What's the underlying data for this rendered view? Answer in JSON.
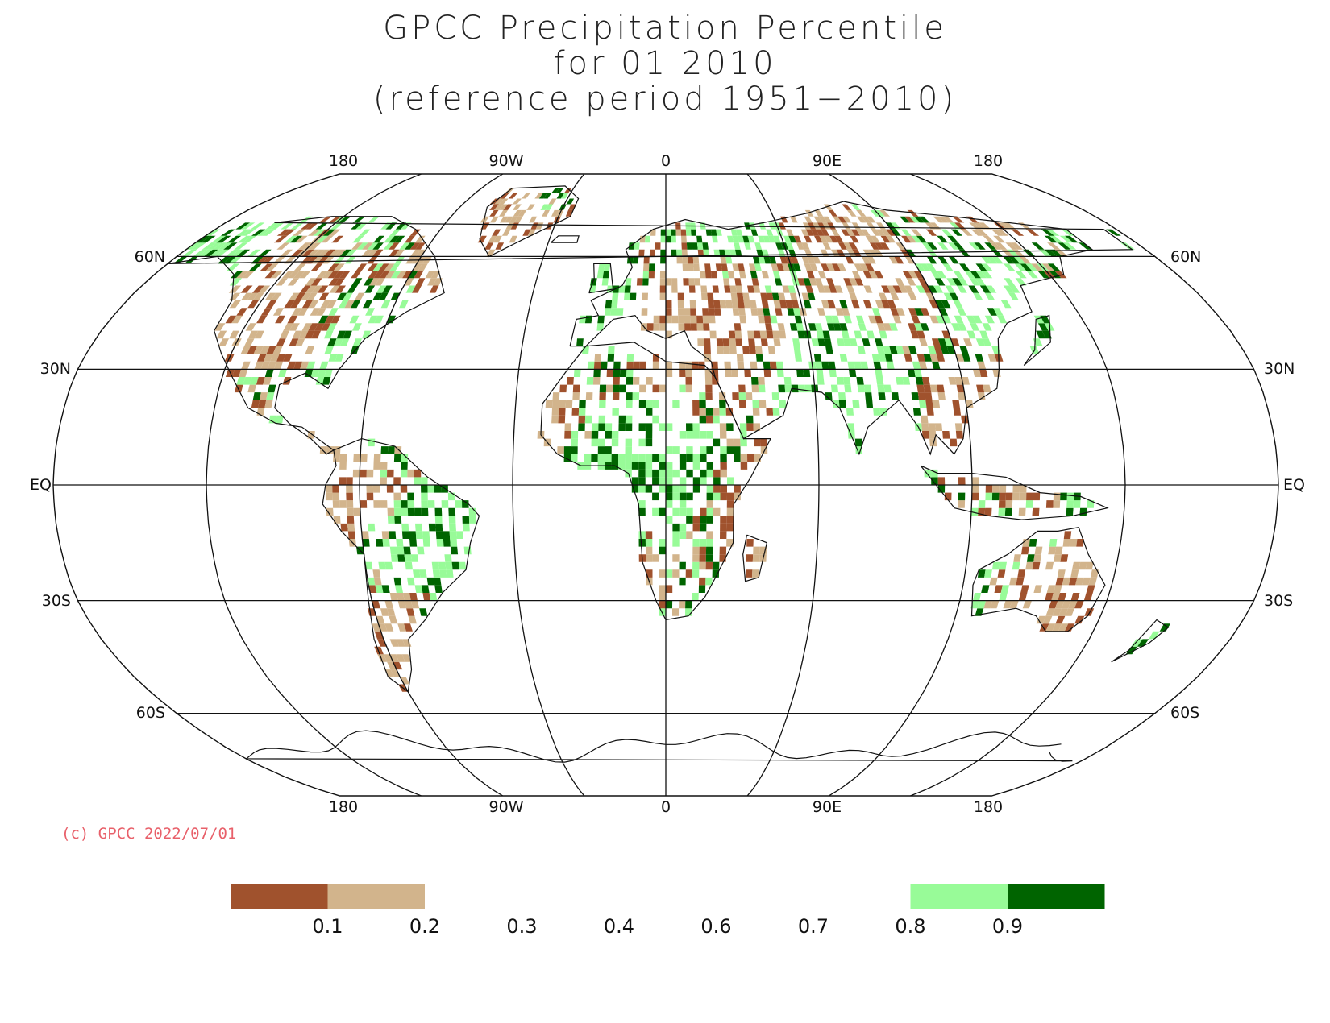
{
  "title": {
    "line1": "GPCC Precipitation Percentile",
    "line2": "for 01 2010",
    "line3": "(reference period 1951−2010)"
  },
  "grid": {
    "lon_labels": [
      "180",
      "90W",
      "0",
      "90E",
      "180"
    ],
    "lat_labels_left": [
      "60N",
      "30N",
      "EQ",
      "30S",
      "60S"
    ],
    "lat_labels_right": [
      "60N",
      "30N",
      "EQ",
      "30S",
      "60S"
    ]
  },
  "copyright": "(c) GPCC 2022/07/01",
  "legend": {
    "tick_labels": [
      "0.1",
      "0.2",
      "0.3",
      "0.4",
      "0.6",
      "0.7",
      "0.8",
      "0.9"
    ],
    "colors": [
      "#a0522d",
      "#d2b48c",
      null,
      null,
      null,
      null,
      null,
      "#98fb98",
      "#006400"
    ]
  },
  "colors": {
    "very_dry": "#a0522d",
    "dry": "#d2b48c",
    "wet": "#98fb98",
    "very_wet": "#006400",
    "copyright": "#e8606a"
  }
}
